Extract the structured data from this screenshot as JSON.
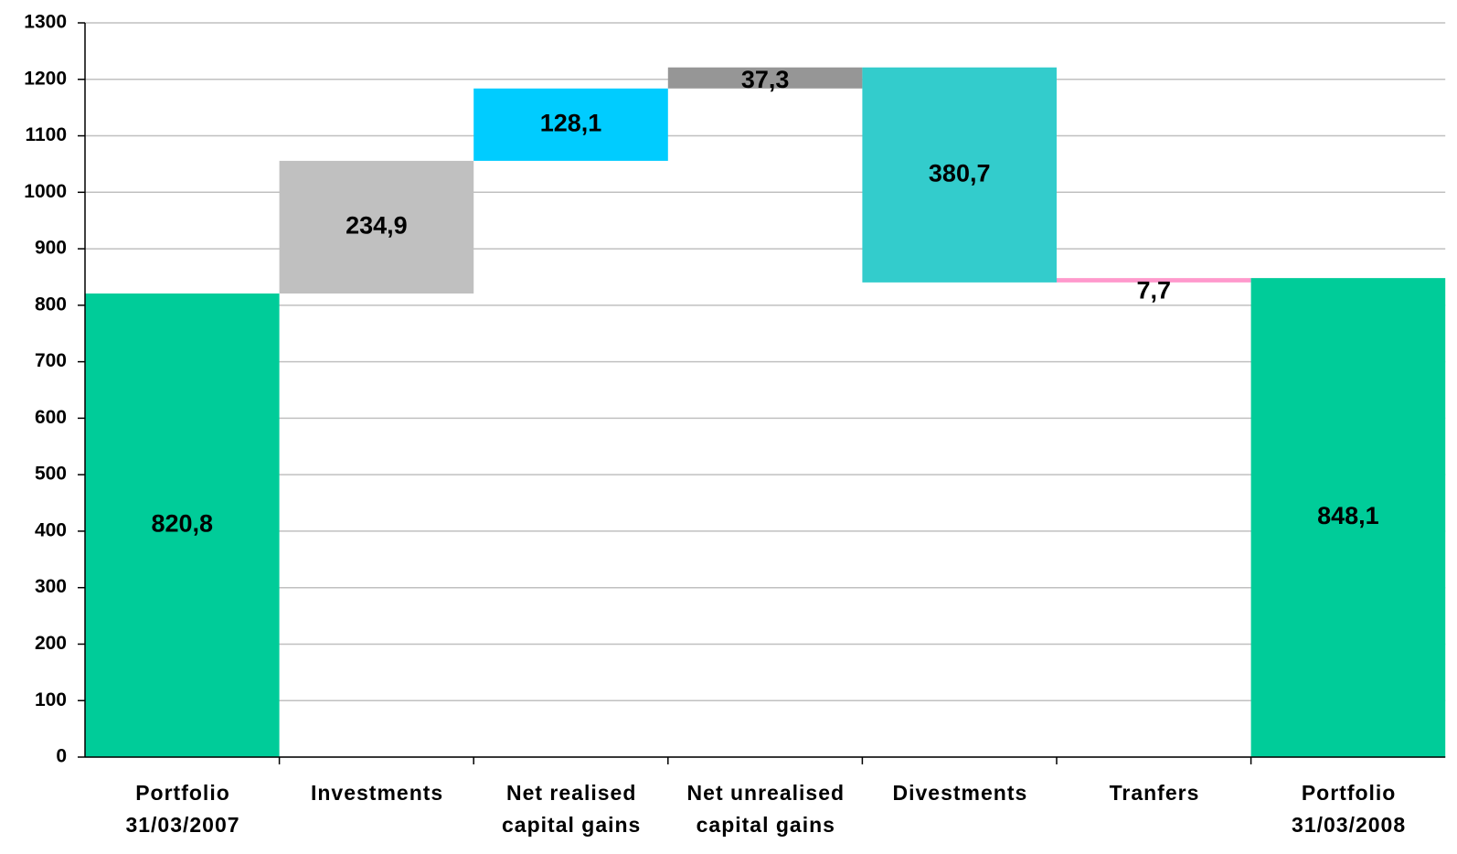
{
  "chart_data": {
    "type": "waterfall",
    "categories": [
      "Portfolio\n31/03/2007",
      "Investments",
      "Net realised\ncapital gains",
      "Net unrealised\ncapital gains",
      "Divestments",
      "Tranfers",
      "Portfolio\n31/03/2008"
    ],
    "measure": [
      "absolute",
      "relative",
      "relative",
      "relative",
      "relative",
      "relative",
      "absolute"
    ],
    "values": [
      820.8,
      234.9,
      128.1,
      37.3,
      -380.7,
      7.7,
      848.1
    ],
    "value_labels": [
      "820,8",
      "234,9",
      "128,1",
      "37,3",
      "380,7",
      "7,7",
      "848,1"
    ],
    "colors": [
      "#00cc99",
      "#c0c0c0",
      "#00ccff",
      "#969696",
      "#33cccc",
      "#ff99cc",
      "#00cc99"
    ],
    "ylim": [
      0,
      1300
    ],
    "yticks": [
      0,
      100,
      200,
      300,
      400,
      500,
      600,
      700,
      800,
      900,
      1000,
      1100,
      1200,
      1300
    ],
    "grid": true
  }
}
